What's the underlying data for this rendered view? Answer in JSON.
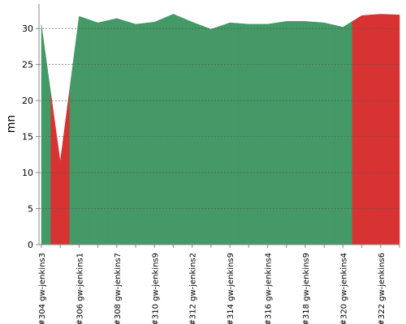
{
  "chart_data": {
    "type": "area",
    "y_label": "mn",
    "categories": [
      "#304 gw-jenkins3",
      null,
      "#306 gw-jenkins1",
      null,
      "#308 gw-jenkins7",
      null,
      "#310 gw-jenkins9",
      null,
      "#312 gw-jenkins2",
      null,
      "#314 gw-jenkins9",
      null,
      "#316 gw-jenkins4",
      null,
      "#318 gw-jenkins9",
      null,
      "#320 gw-jenkins4",
      null,
      "#322 gw-jenkins6",
      null
    ],
    "values": [
      30.5,
      11.5,
      31.7,
      30.8,
      31.4,
      30.6,
      30.9,
      32.0,
      30.9,
      29.9,
      30.8,
      30.6,
      30.6,
      31.0,
      31.0,
      30.8,
      30.2,
      31.8,
      32.0,
      31.9
    ],
    "point_colors": [
      "#449966",
      "#d73333",
      "#449966",
      "#449966",
      "#449966",
      "#449966",
      "#449966",
      "#449966",
      "#449966",
      "#449966",
      "#449966",
      "#449966",
      "#449966",
      "#449966",
      "#449966",
      "#449966",
      "#449966",
      "#d73333",
      "#d73333",
      "#d73333"
    ],
    "ylim": [
      0,
      33.4
    ],
    "yticks": [
      0,
      5,
      10,
      15,
      20,
      25,
      30
    ],
    "grid": true
  }
}
